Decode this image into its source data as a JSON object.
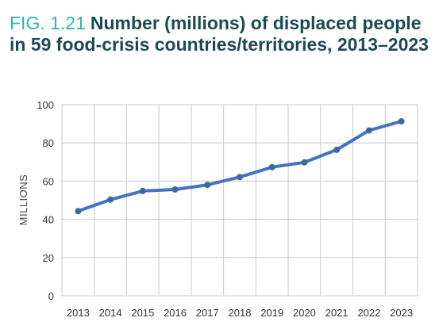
{
  "header": {
    "fig_label": "FIG. 1.21",
    "title": "Number (millions) of displaced people in 59 food-crisis countries/territories, 2013–2023"
  },
  "chart_data": {
    "type": "line",
    "title": "Number (millions) of displaced people in 59 food-crisis countries/territories, 2013–2023",
    "xlabel": "",
    "ylabel": "MILLIONS",
    "categories": [
      "2013",
      "2014",
      "2015",
      "2016",
      "2017",
      "2018",
      "2019",
      "2020",
      "2021",
      "2022",
      "2023"
    ],
    "series": [
      {
        "values": [
          44.3,
          50.3,
          54.8,
          55.6,
          58.0,
          62.1,
          67.3,
          69.8,
          76.4,
          86.5,
          91.3
        ]
      }
    ],
    "ylim": [
      0,
      100
    ],
    "yticks": [
      0,
      20,
      40,
      60,
      80,
      100
    ],
    "grid": true,
    "legend": "none",
    "line_color": "#4472c4",
    "marker_color": "#3b6aa3",
    "grid_color": "#c8c8c8"
  }
}
